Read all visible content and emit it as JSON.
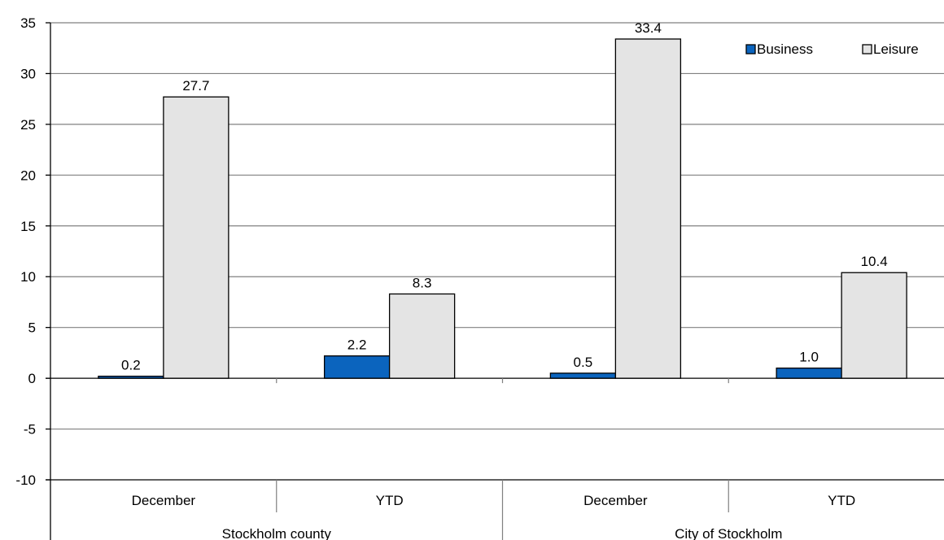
{
  "chart_data": {
    "type": "bar",
    "categories": [
      "December",
      "YTD",
      "December",
      "YTD"
    ],
    "groups": [
      {
        "label": "Stockholm county",
        "span": [
          0,
          1
        ]
      },
      {
        "label": "City of Stockholm",
        "span": [
          2,
          3
        ]
      }
    ],
    "series": [
      {
        "name": "Business",
        "values": [
          0.2,
          2.2,
          0.5,
          1.0
        ],
        "color": "#0B64BE"
      },
      {
        "name": "Leisure",
        "values": [
          27.7,
          8.3,
          33.4,
          10.4
        ],
        "color": "#E4E4E4"
      }
    ],
    "data_labels": [
      [
        "0.2",
        "2.2",
        "0.5",
        "1.0"
      ],
      [
        "27.7",
        "8.3",
        "33.4",
        "10.4"
      ]
    ],
    "ylim": [
      -10,
      35
    ],
    "yticks": [
      -10,
      -5,
      0,
      5,
      10,
      15,
      20,
      25,
      30,
      35
    ],
    "ytick_labels": [
      "-10",
      "-5",
      "0",
      "5",
      "10",
      "15",
      "20",
      "25",
      "30",
      "35"
    ],
    "grid": true,
    "legend_position": "top-right",
    "title": "",
    "xlabel": "",
    "ylabel": ""
  }
}
